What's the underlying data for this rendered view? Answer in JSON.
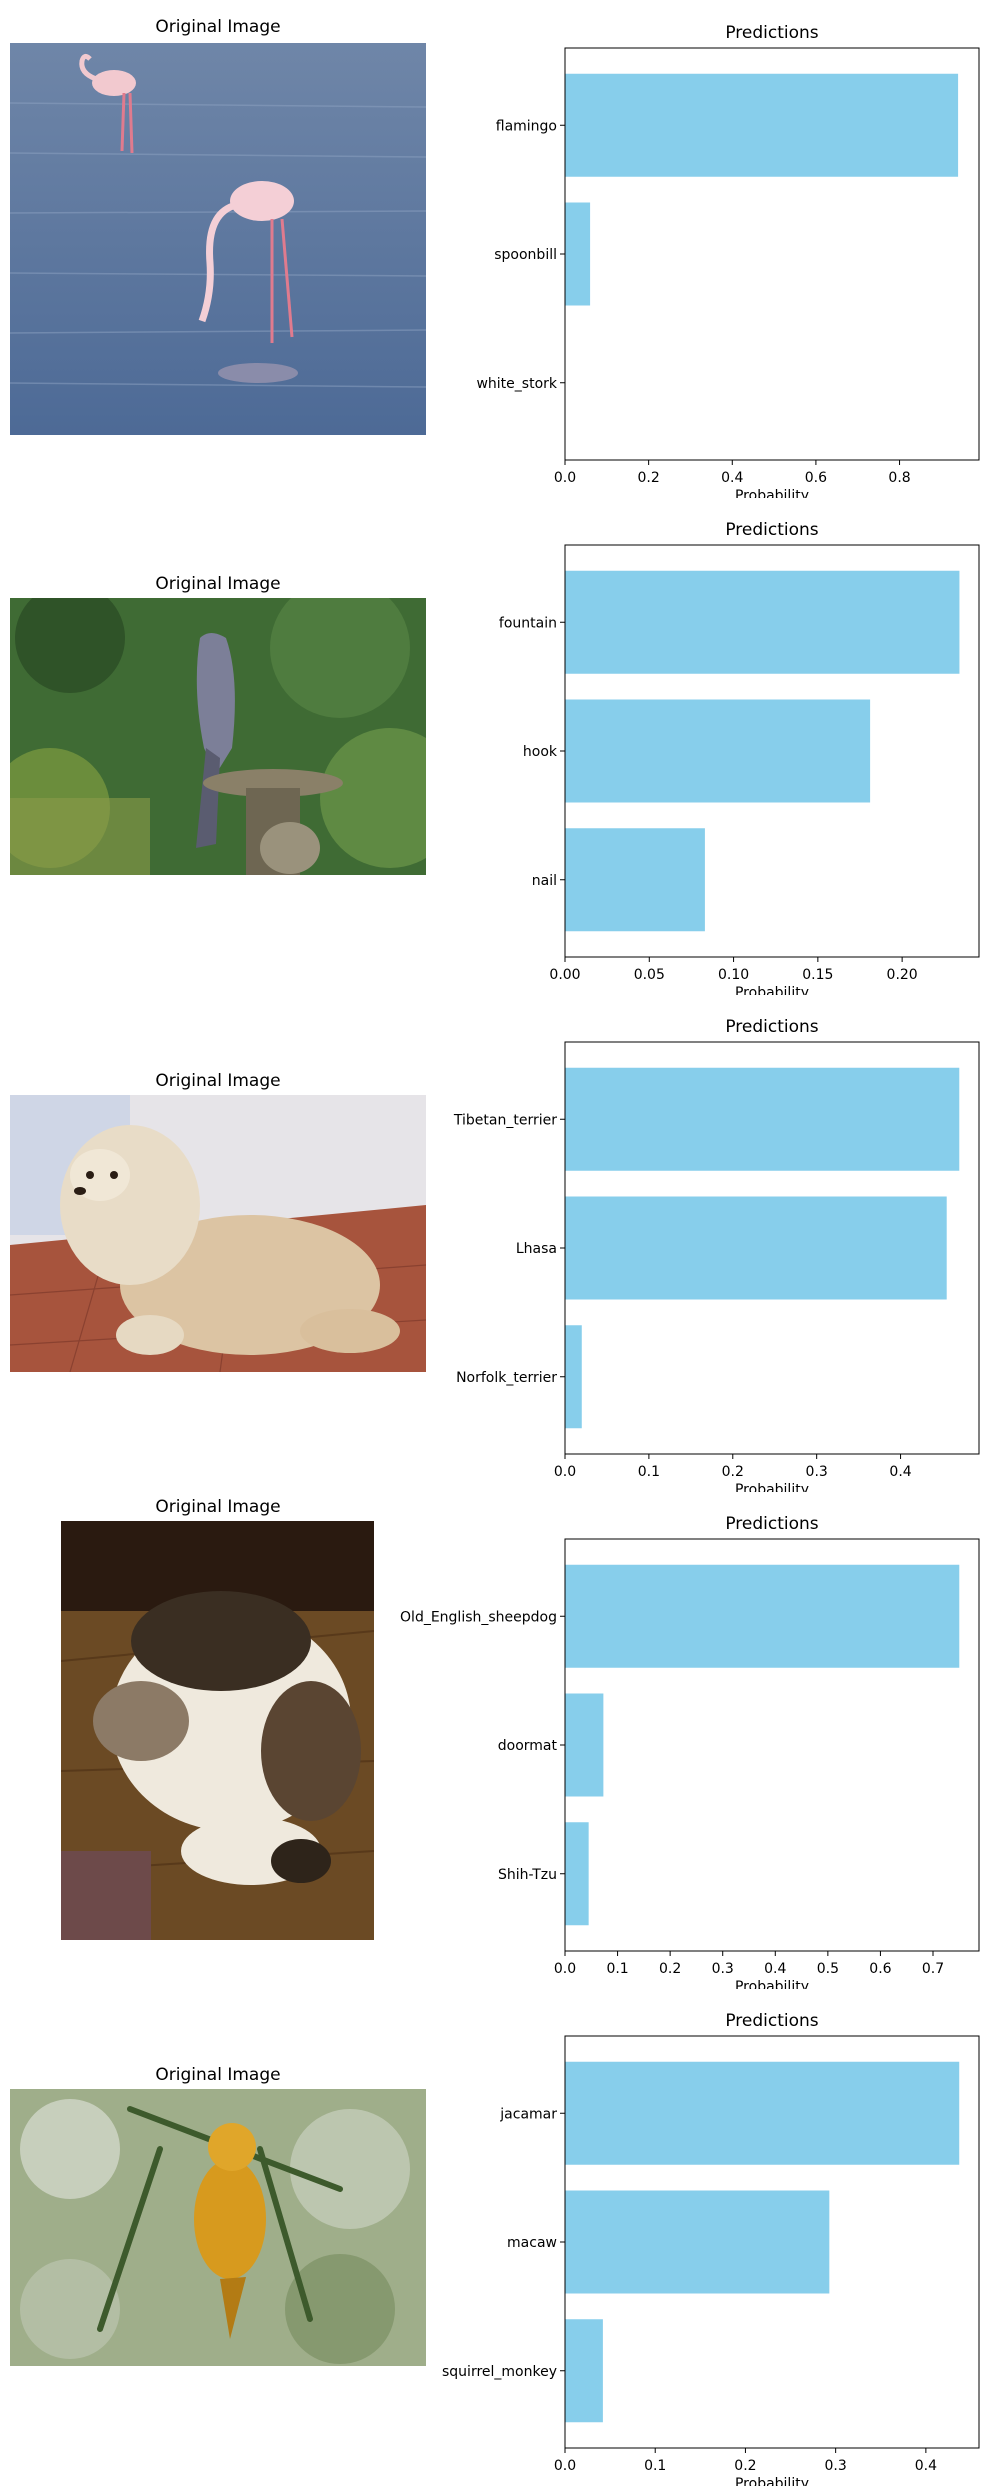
{
  "figure": {
    "rows": [
      {
        "image": {
          "title": "Original Image",
          "subject": "two pink flamingos wading in blue water",
          "colors": {
            "sky": "#6f86a8",
            "water": "#5c78a0",
            "bird": "#f2c9cf",
            "legs": "#e07b8e"
          }
        },
        "chart_data": {
          "type": "bar",
          "orientation": "horizontal",
          "title": "Predictions",
          "xlabel": "Probability",
          "ylabel": "",
          "categories": [
            "flamingo",
            "spoonbill",
            "white_stork"
          ],
          "values": [
            0.94,
            0.06,
            0.0
          ],
          "xlim": [
            0,
            0.99
          ],
          "xticks": [
            0.0,
            0.2,
            0.4,
            0.6,
            0.8
          ],
          "xtick_labels": [
            "0.0",
            "0.2",
            "0.4",
            "0.6",
            "0.8"
          ],
          "bar_color": "#87ceeb",
          "grid": false
        }
      },
      {
        "image": {
          "title": "Original Image",
          "subject": "hawk perched on a stone bird bath in a garden",
          "colors": {
            "foliage": "#3f6b34",
            "bird": "#7c7f98",
            "stone": "#8a8068"
          }
        },
        "chart_data": {
          "type": "bar",
          "orientation": "horizontal",
          "title": "Predictions",
          "xlabel": "Probability",
          "ylabel": "",
          "categories": [
            "fountain",
            "hook",
            "nail"
          ],
          "values": [
            0.234,
            0.181,
            0.083
          ],
          "xlim": [
            0,
            0.2456
          ],
          "xticks": [
            0.0,
            0.05,
            0.1,
            0.15,
            0.2
          ],
          "xtick_labels": [
            "0.00",
            "0.05",
            "0.10",
            "0.15",
            "0.20"
          ],
          "bar_color": "#87ceeb",
          "grid": false
        }
      },
      {
        "image": {
          "title": "Original Image",
          "subject": "fluffy cream dog sitting on a red tiled patio",
          "colors": {
            "wall": "#e6e4e8",
            "floor": "#a7543d",
            "dog": "#dcc4a3"
          }
        },
        "chart_data": {
          "type": "bar",
          "orientation": "horizontal",
          "title": "Predictions",
          "xlabel": "Probability",
          "ylabel": "",
          "categories": [
            "Tibetan_terrier",
            "Lhasa",
            "Norfolk_terrier"
          ],
          "values": [
            0.47,
            0.455,
            0.02
          ],
          "xlim": [
            0,
            0.4935
          ],
          "xticks": [
            0.0,
            0.1,
            0.2,
            0.3,
            0.4
          ],
          "xtick_labels": [
            "0.0",
            "0.1",
            "0.2",
            "0.3",
            "0.4"
          ],
          "bar_color": "#87ceeb",
          "grid": false
        }
      },
      {
        "image": {
          "title": "Original Image",
          "subject": "fluffy tabby and white cat asleep on a wooden table",
          "colors": {
            "table": "#6b4a24",
            "fur": "#efe9dd",
            "patches": "#3a2e22"
          }
        },
        "chart_data": {
          "type": "bar",
          "orientation": "horizontal",
          "title": "Predictions",
          "xlabel": "Probability",
          "ylabel": "",
          "categories": [
            "Old_English_sheepdog",
            "doormat",
            "Shih-Tzu"
          ],
          "values": [
            0.75,
            0.073,
            0.045
          ],
          "xlim": [
            0,
            0.7875
          ],
          "xticks": [
            0.0,
            0.1,
            0.2,
            0.3,
            0.4,
            0.5,
            0.6,
            0.7
          ],
          "xtick_labels": [
            "0.0",
            "0.1",
            "0.2",
            "0.3",
            "0.4",
            "0.5",
            "0.6",
            "0.7"
          ],
          "bar_color": "#87ceeb",
          "grid": false
        }
      },
      {
        "image": {
          "title": "Original Image",
          "subject": "yellow weaver bird hanging among leafy branches",
          "colors": {
            "bokeh": "#9fae8a",
            "leaves": "#3d5a2c",
            "bird": "#d79a1e"
          }
        },
        "chart_data": {
          "type": "bar",
          "orientation": "horizontal",
          "title": "Predictions",
          "xlabel": "Probability",
          "ylabel": "",
          "categories": [
            "jacamar",
            "macaw",
            "squirrel_monkey"
          ],
          "values": [
            0.437,
            0.293,
            0.042
          ],
          "xlim": [
            0,
            0.4589
          ],
          "xticks": [
            0.0,
            0.1,
            0.2,
            0.3,
            0.4
          ],
          "xtick_labels": [
            "0.0",
            "0.1",
            "0.2",
            "0.3",
            "0.4"
          ],
          "bar_color": "#87ceeb",
          "grid": false
        }
      }
    ]
  }
}
